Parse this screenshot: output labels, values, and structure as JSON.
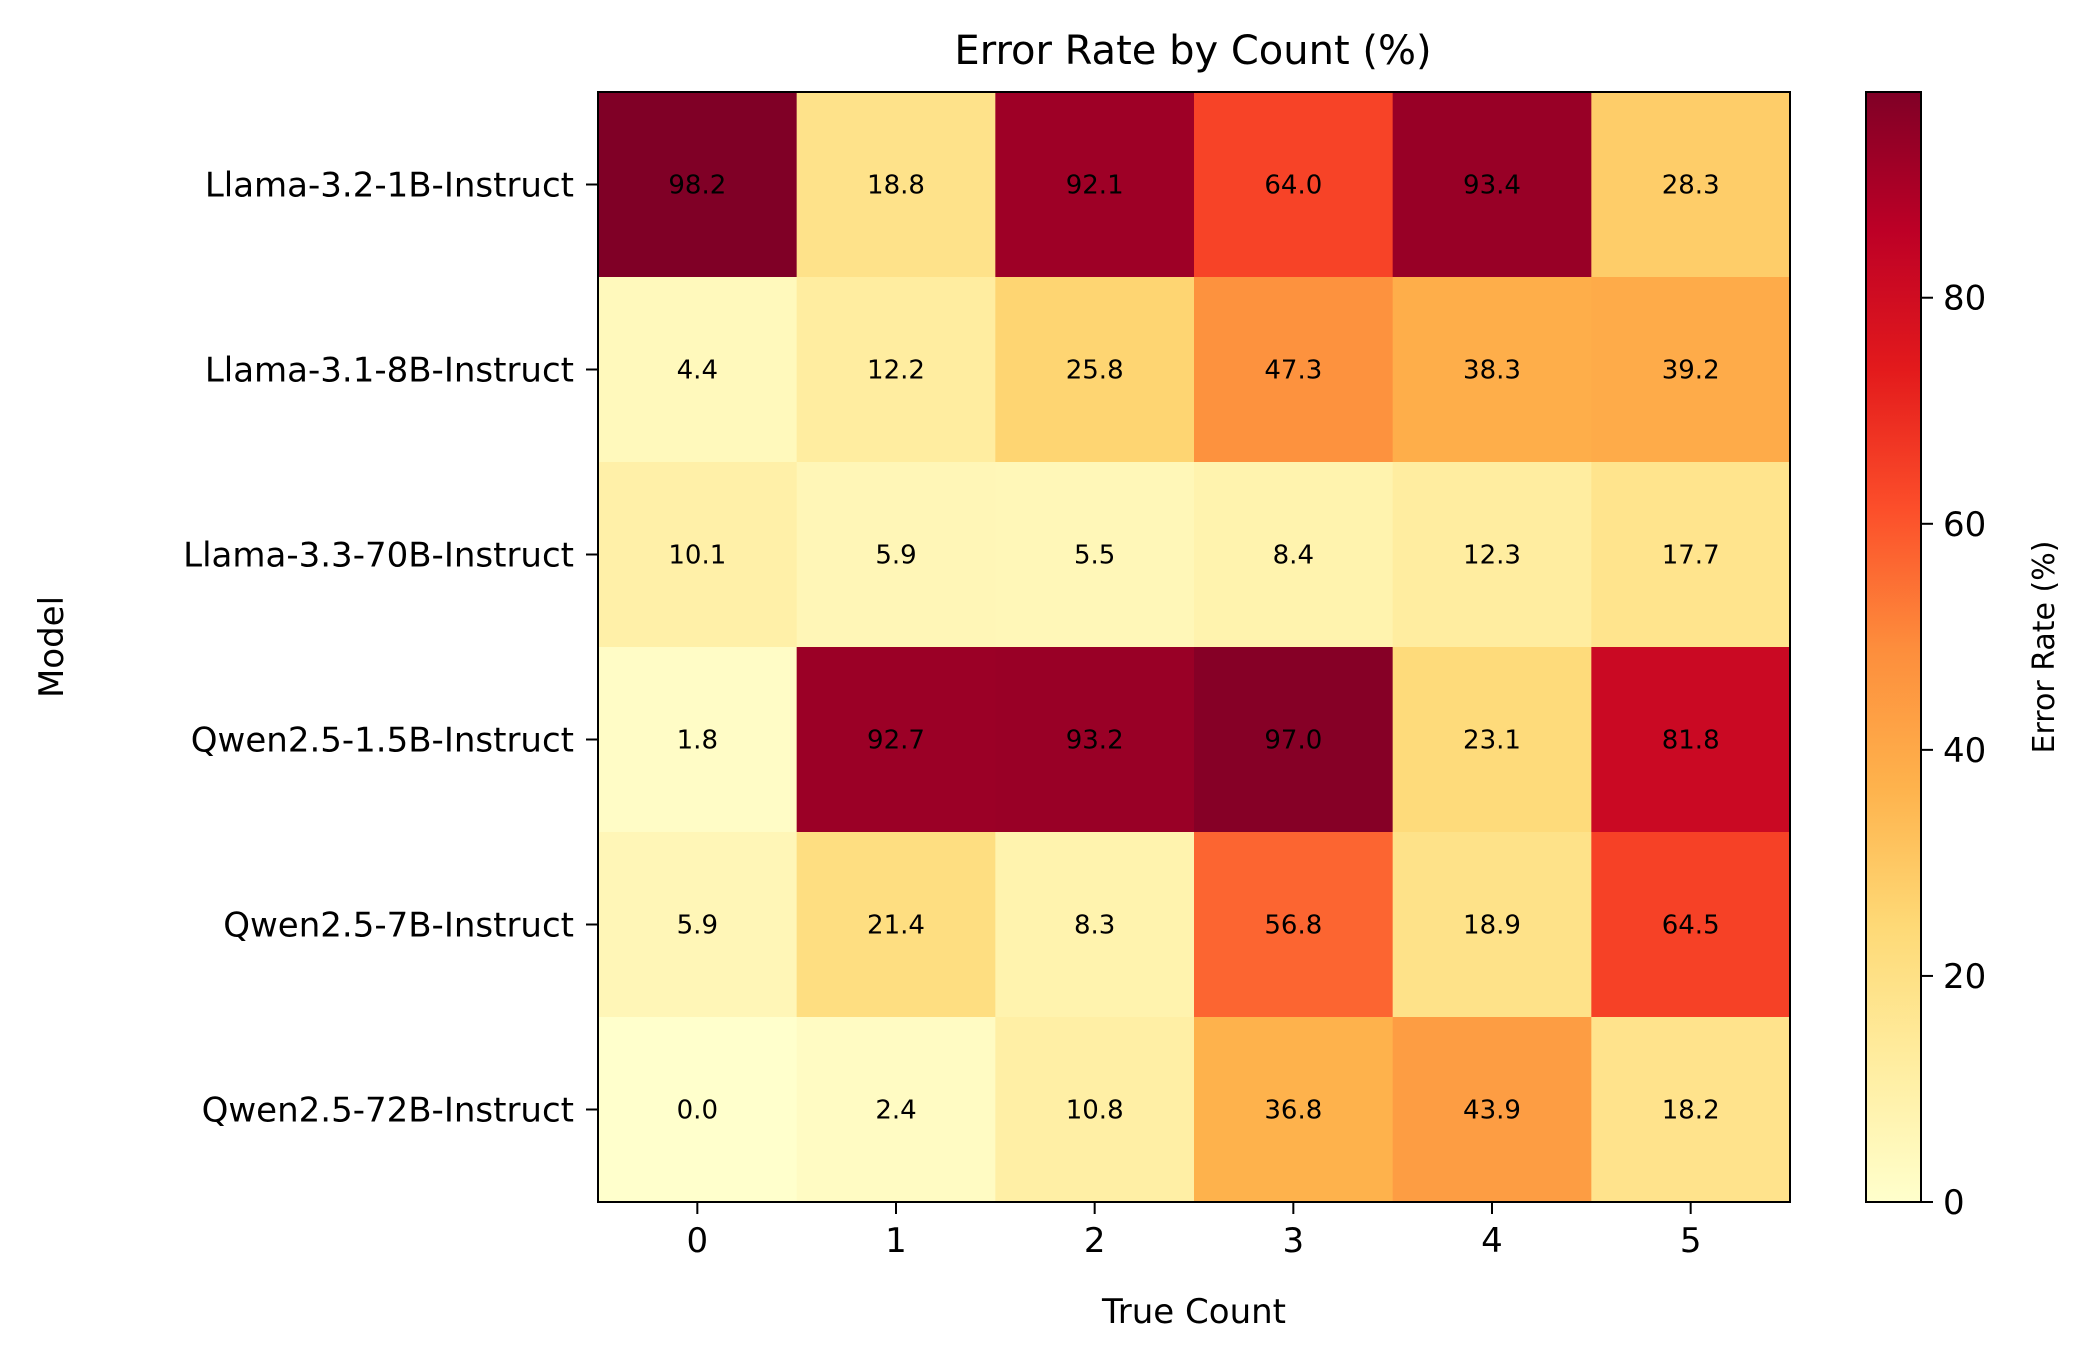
{
  "chart_data": {
    "type": "heatmap",
    "title": "Error Rate by Count (%)",
    "xlabel": "True Count",
    "ylabel": "Model",
    "x_categories": [
      "0",
      "1",
      "2",
      "3",
      "4",
      "5"
    ],
    "y_categories": [
      "Llama-3.2-1B-Instruct",
      "Llama-3.1-8B-Instruct",
      "Llama-3.3-70B-Instruct",
      "Qwen2.5-1.5B-Instruct",
      "Qwen2.5-7B-Instruct",
      "Qwen2.5-72B-Instruct"
    ],
    "values": [
      [
        98.2,
        18.8,
        92.1,
        64.0,
        93.4,
        28.3
      ],
      [
        4.4,
        12.2,
        25.8,
        47.3,
        38.3,
        39.2
      ],
      [
        10.1,
        5.9,
        5.5,
        8.4,
        12.3,
        17.7
      ],
      [
        1.8,
        92.7,
        93.2,
        97.0,
        23.1,
        81.8
      ],
      [
        5.9,
        21.4,
        8.3,
        56.8,
        18.9,
        64.5
      ],
      [
        0.0,
        2.4,
        10.8,
        36.8,
        43.9,
        18.2
      ]
    ],
    "value_labels": [
      [
        "98.2",
        "18.8",
        "92.1",
        "64.0",
        "93.4",
        "28.3"
      ],
      [
        "4.4",
        "12.2",
        "25.8",
        "47.3",
        "38.3",
        "39.2"
      ],
      [
        "10.1",
        "5.9",
        "5.5",
        "8.4",
        "12.3",
        "17.7"
      ],
      [
        "1.8",
        "92.7",
        "93.2",
        "97.0",
        "23.1",
        "81.8"
      ],
      [
        "5.9",
        "21.4",
        "8.3",
        "56.8",
        "18.9",
        "64.5"
      ],
      [
        "0.0",
        "2.4",
        "10.8",
        "36.8",
        "43.9",
        "18.2"
      ]
    ],
    "colormap": "YlOrRd",
    "colormap_stops": [
      "#ffffcc",
      "#ffeda0",
      "#fed976",
      "#feb24c",
      "#fd8d3c",
      "#fc4e2a",
      "#e31a1c",
      "#bd0026",
      "#800026"
    ],
    "vmin": 0,
    "vmax": 98.2,
    "colorbar": {
      "label": "Error Rate (%)",
      "ticks": [
        0,
        20,
        40,
        60,
        80
      ],
      "tick_labels": [
        "0",
        "20",
        "40",
        "60",
        "80"
      ]
    },
    "grid": false,
    "legend": "colorbar-right"
  }
}
